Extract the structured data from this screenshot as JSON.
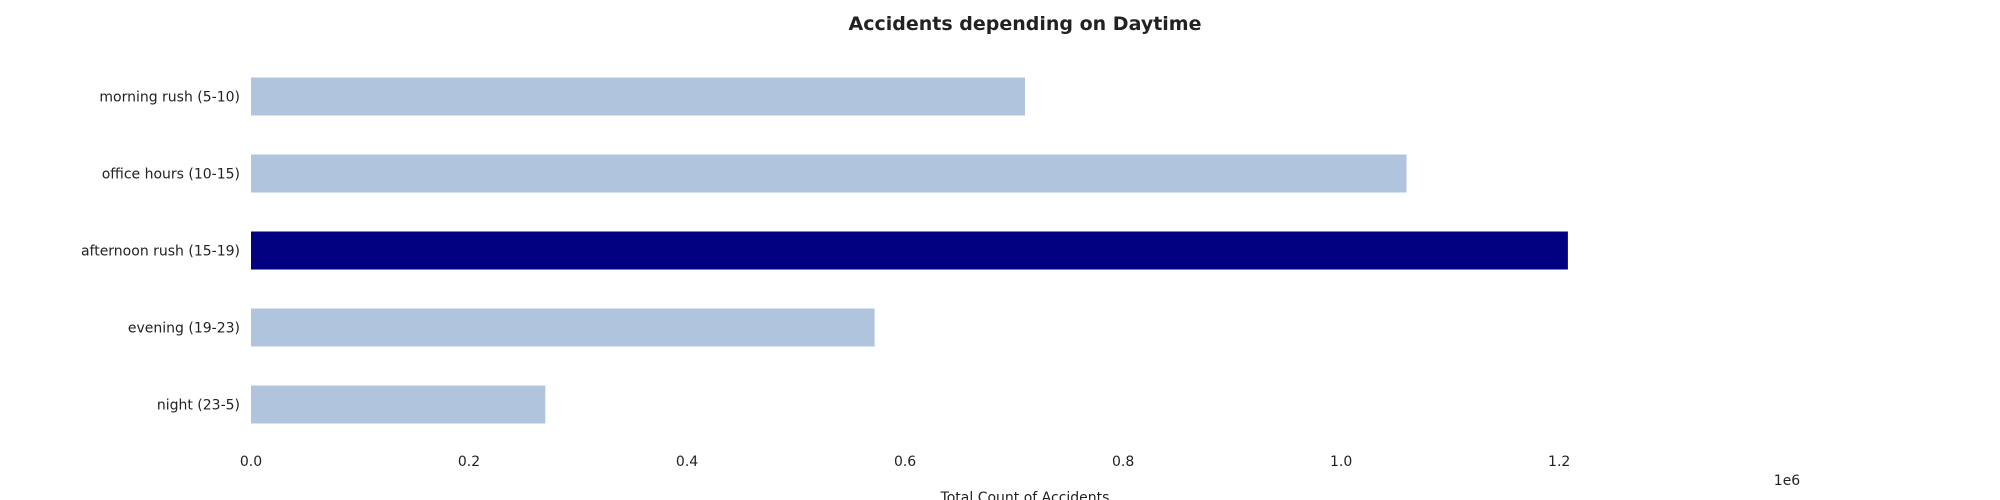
{
  "chart_data": {
    "type": "bar",
    "orientation": "horizontal",
    "title": "Accidents depending on Daytime",
    "xlabel": "Total Count of Accidents",
    "ylabel": "",
    "x_scale_label": "1e6",
    "categories": [
      "morning rush (5-10)",
      "office hours (10-15)",
      "afternoon rush (15-19)",
      "evening (19-23)",
      "night (23-5)"
    ],
    "values": [
      710000,
      1060000,
      1208000,
      572000,
      270000
    ],
    "highlight_index": 2,
    "xlim": [
      0,
      1420000
    ],
    "x_ticks": [
      0,
      200000,
      400000,
      600000,
      800000,
      1000000,
      1200000
    ],
    "x_tick_labels": [
      "0.0",
      "0.2",
      "0.4",
      "0.6",
      "0.8",
      "1.0",
      "1.2"
    ],
    "grid": false,
    "legend": "none",
    "colors": {
      "default_bar": "#b0c4de",
      "highlight_bar": "#000080"
    }
  }
}
